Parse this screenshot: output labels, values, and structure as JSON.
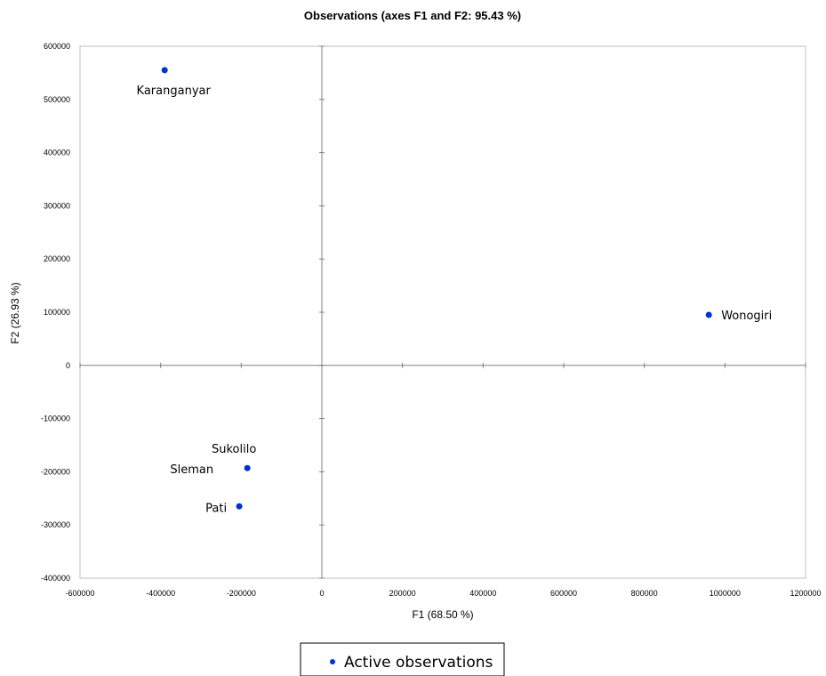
{
  "chart_data": {
    "type": "scatter",
    "title": "Observations (axes F1 and F2: 95.43 %)",
    "xlabel": "F1 (68.50 %)",
    "ylabel": "F2 (26.93 %)",
    "xlim": [
      -600000,
      1200000
    ],
    "ylim": [
      -400000,
      600000
    ],
    "x_ticks": [
      "-600000",
      "-400000",
      "-200000",
      "0",
      "200000",
      "400000",
      "600000",
      "800000",
      "1000000",
      "1200000"
    ],
    "y_ticks": [
      "600000",
      "500000",
      "400000",
      "300000",
      "200000",
      "100000",
      "0",
      "-100000",
      "-200000",
      "-300000",
      "-400000"
    ],
    "legend": {
      "position": "bottom",
      "entries": [
        "Active observations"
      ]
    },
    "series": [
      {
        "name": "Active observations",
        "color": "#0033CC",
        "points": [
          {
            "label": "Karanganyar",
            "x": -390000,
            "y": 555000
          },
          {
            "label": "Wonogiri",
            "x": 960000,
            "y": 95000
          },
          {
            "label": "Sukolilo",
            "x": -185000,
            "y": -193000
          },
          {
            "label": "Sleman",
            "x": -185000,
            "y": -193000
          },
          {
            "label": "Pati",
            "x": -205000,
            "y": -265000
          }
        ]
      }
    ]
  }
}
